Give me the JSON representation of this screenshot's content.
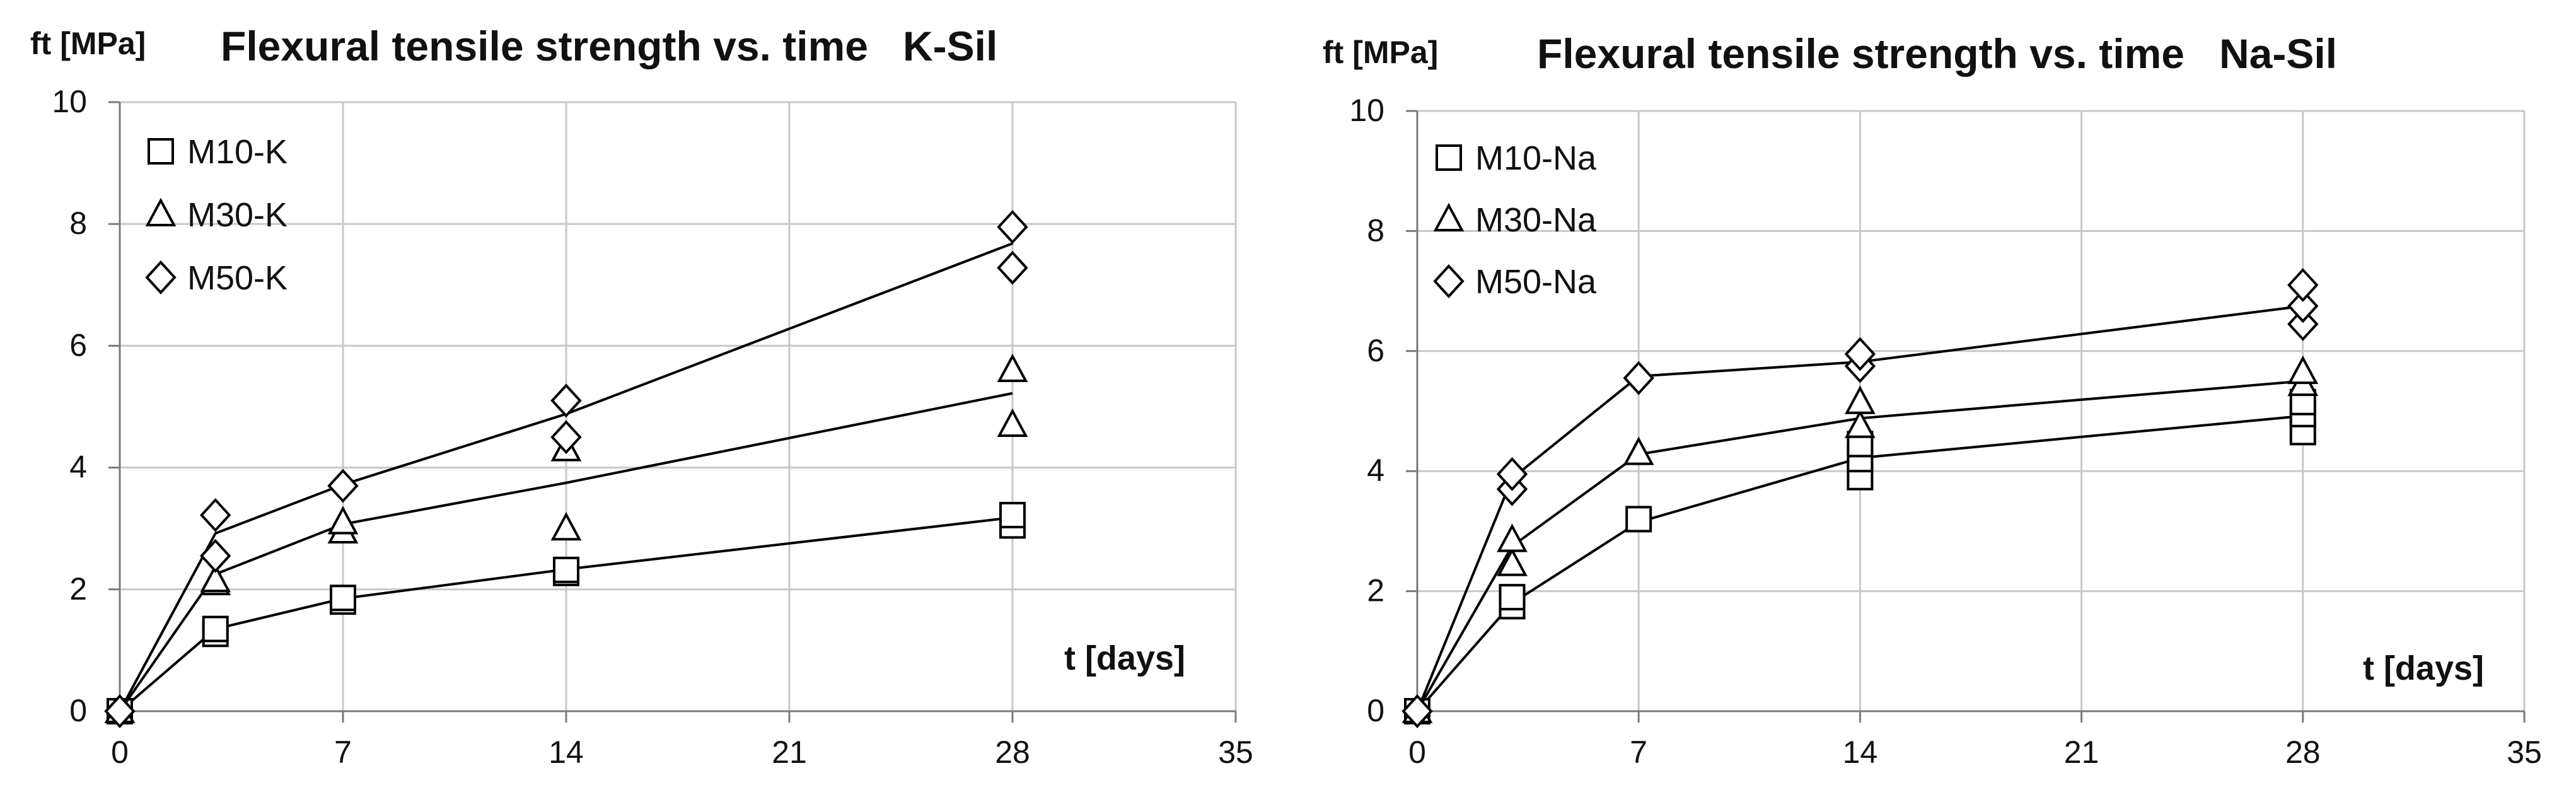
{
  "chart_data": [
    {
      "type": "scatter",
      "title": "Flexural tensile strength vs. time   K-Sil",
      "ylabel": "ft [MPa]",
      "xlabel": "t [days]",
      "xlim": [
        0,
        35
      ],
      "ylim": [
        0,
        10
      ],
      "xticks": [
        0,
        7,
        14,
        21,
        28,
        35
      ],
      "yticks": [
        0,
        2,
        4,
        6,
        8,
        10
      ],
      "grid": true,
      "legend": "top-left",
      "series": [
        {
          "name": "M10-K",
          "marker": "square",
          "points": [
            [
              0,
              0
            ],
            [
              3,
              1.27
            ],
            [
              3,
              1.35
            ],
            [
              7,
              1.8
            ],
            [
              7,
              1.86
            ],
            [
              14,
              2.27
            ],
            [
              14,
              2.32
            ],
            [
              28,
              3.05
            ],
            [
              28,
              3.22
            ]
          ],
          "trend": [
            [
              0,
              0
            ],
            [
              3,
              1.35
            ],
            [
              7,
              1.85
            ],
            [
              14,
              2.33
            ],
            [
              28,
              3.18
            ]
          ]
        },
        {
          "name": "M30-K",
          "marker": "triangle",
          "points": [
            [
              0,
              0
            ],
            [
              3,
              2.1
            ],
            [
              3,
              2.15
            ],
            [
              7,
              2.95
            ],
            [
              7,
              3.1
            ],
            [
              14,
              4.3
            ],
            [
              14,
              3.0
            ],
            [
              28,
              5.6
            ],
            [
              28,
              4.7
            ]
          ],
          "trend": [
            [
              0,
              0
            ],
            [
              3,
              2.25
            ],
            [
              7,
              3.07
            ],
            [
              14,
              3.75
            ],
            [
              28,
              5.22
            ]
          ]
        },
        {
          "name": "M50-K",
          "marker": "diamond",
          "points": [
            [
              0,
              0
            ],
            [
              3,
              3.22
            ],
            [
              3,
              2.55
            ],
            [
              7,
              3.7
            ],
            [
              14,
              5.1
            ],
            [
              14,
              4.5
            ],
            [
              28,
              7.95
            ],
            [
              28,
              7.28
            ]
          ],
          "trend": [
            [
              0,
              0
            ],
            [
              3,
              2.92
            ],
            [
              7,
              3.72
            ],
            [
              14,
              4.88
            ],
            [
              28,
              7.68
            ]
          ]
        }
      ]
    },
    {
      "type": "scatter",
      "title": "Flexural tensile strength vs. time   Na-Sil",
      "ylabel": "ft [MPa]",
      "xlabel": "t [days]",
      "xlim": [
        0,
        35
      ],
      "ylim": [
        0,
        10
      ],
      "xticks": [
        0,
        7,
        14,
        21,
        28,
        35
      ],
      "yticks": [
        0,
        2,
        4,
        6,
        8,
        10
      ],
      "grid": true,
      "legend": "top-left",
      "series": [
        {
          "name": "M10-Na",
          "marker": "square",
          "points": [
            [
              0,
              0
            ],
            [
              3,
              1.75
            ],
            [
              3,
              1.9
            ],
            [
              7,
              3.2
            ],
            [
              14,
              3.9
            ],
            [
              14,
              4.2
            ],
            [
              14,
              4.45
            ],
            [
              28,
              4.65
            ],
            [
              28,
              4.95
            ],
            [
              28,
              5.15
            ]
          ],
          "trend": [
            [
              0,
              0
            ],
            [
              3,
              1.8
            ],
            [
              7,
              3.15
            ],
            [
              14,
              4.22
            ],
            [
              28,
              4.92
            ]
          ]
        },
        {
          "name": "M30-Na",
          "marker": "triangle",
          "points": [
            [
              0,
              0
            ],
            [
              3,
              2.45
            ],
            [
              3,
              2.85
            ],
            [
              7,
              4.3
            ],
            [
              14,
              4.75
            ],
            [
              14,
              5.15
            ],
            [
              28,
              5.45
            ],
            [
              28,
              5.65
            ]
          ],
          "trend": [
            [
              0,
              0
            ],
            [
              3,
              2.75
            ],
            [
              7,
              4.28
            ],
            [
              14,
              4.88
            ],
            [
              28,
              5.5
            ]
          ]
        },
        {
          "name": "M50-Na",
          "marker": "diamond",
          "points": [
            [
              0,
              0
            ],
            [
              3,
              3.7
            ],
            [
              3,
              3.95
            ],
            [
              7,
              5.55
            ],
            [
              14,
              5.75
            ],
            [
              14,
              5.95
            ],
            [
              28,
              6.45
            ],
            [
              28,
              6.75
            ],
            [
              28,
              7.1
            ]
          ],
          "trend": [
            [
              0,
              0
            ],
            [
              3,
              3.88
            ],
            [
              7,
              5.58
            ],
            [
              14,
              5.82
            ],
            [
              28,
              6.75
            ]
          ]
        }
      ]
    }
  ]
}
